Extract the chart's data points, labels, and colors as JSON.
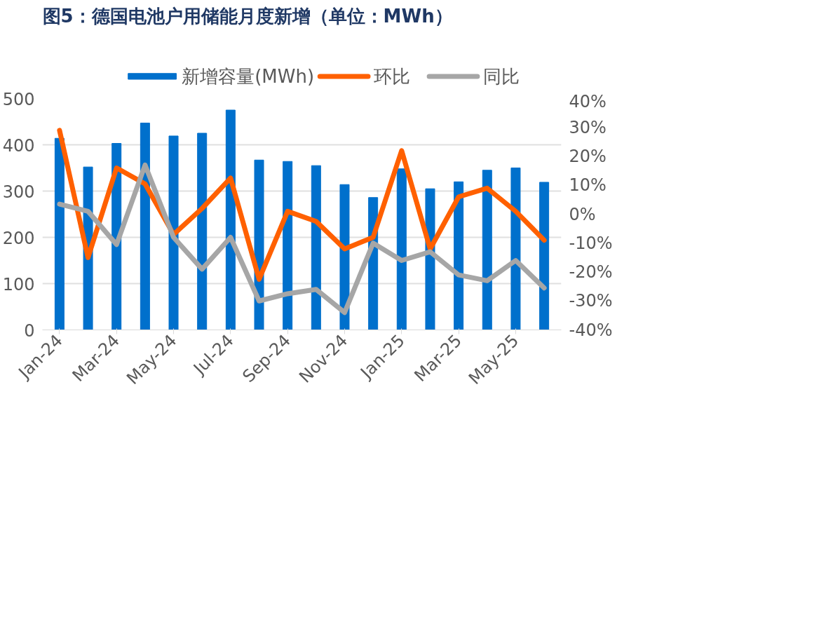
{
  "chart_data": {
    "type": "bar",
    "title": "图5：德国电池户用储能月度新增（单位：MWh）",
    "categories": [
      "Jan-24",
      null,
      "Mar-24",
      null,
      "May-24",
      null,
      "Jul-24",
      null,
      "Sep-24",
      null,
      "Nov-24",
      null,
      "Jan-25",
      null,
      "Mar-25",
      null,
      "May-25",
      null
    ],
    "series": [
      {
        "name": "新增容量(MWh)",
        "color": "#0070cc",
        "values": [
          414,
          352,
          403,
          447,
          419,
          425,
          475,
          367,
          364,
          355,
          314,
          286,
          348,
          305,
          320,
          345,
          350,
          319
        ]
      },
      {
        "name": "环比",
        "type": "line",
        "axis": "y2",
        "color": "#ff6000",
        "values": [
          29,
          -15,
          16,
          10.5,
          -7,
          2,
          12.5,
          -22.5,
          1,
          -2.5,
          -12,
          -8,
          22,
          -12,
          6,
          9,
          1,
          -9
        ]
      },
      {
        "name": "同比",
        "type": "line",
        "axis": "y2",
        "color": "#a6a6a6",
        "values": [
          3.5,
          1,
          -10.5,
          17,
          -8,
          -19,
          -8,
          -30,
          -27.5,
          -26,
          -34,
          -10,
          -16,
          -13,
          -21,
          -23,
          -16,
          -25.5
        ]
      }
    ],
    "ylim": [
      0,
      500
    ],
    "yticks": [
      0,
      100,
      200,
      300,
      400,
      500
    ],
    "y2lim": [
      -40,
      40
    ],
    "y2ticks": [
      {
        "value": -40,
        "label": "-40%"
      },
      {
        "value": -30,
        "label": "-30%"
      },
      {
        "value": -20,
        "label": "-20%"
      },
      {
        "value": -10,
        "label": "-10%"
      },
      {
        "value": 0,
        "label": "0%"
      },
      {
        "value": 10,
        "label": "10%"
      },
      {
        "value": 20,
        "label": "20%"
      },
      {
        "value": 30,
        "label": "30%"
      },
      {
        "value": 40,
        "label": "40%"
      }
    ],
    "grid": "y",
    "legend": "top",
    "line_style": "solid",
    "marker": "none"
  }
}
